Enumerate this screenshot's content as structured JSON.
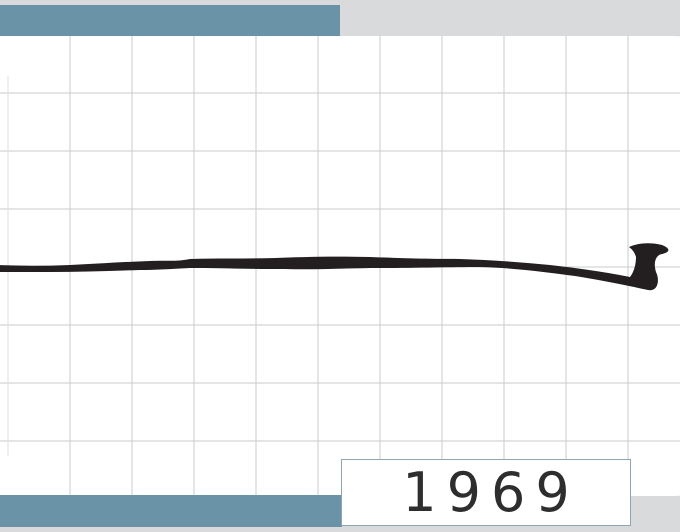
{
  "year_label": "1969",
  "colors": {
    "background": "#d9dadc",
    "accent_bar": "#6b93a8",
    "paper": "#ffffff",
    "grid_line": "#c8cbce",
    "ink_line": "#231f20",
    "label_border": "#8fa5b1",
    "label_text": "#2e2e2e"
  }
}
